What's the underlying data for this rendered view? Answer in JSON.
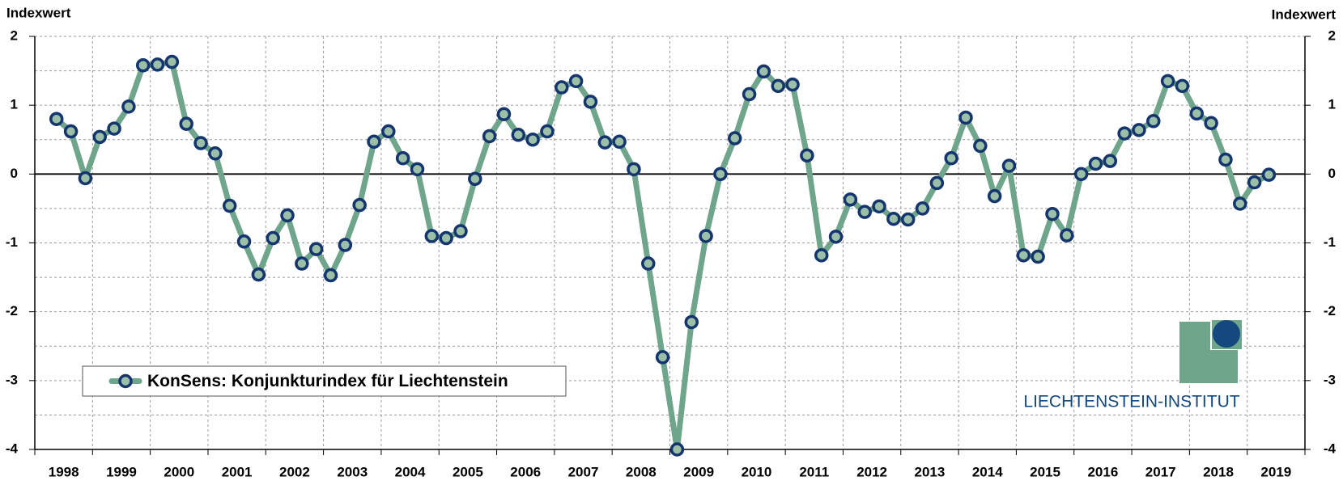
{
  "chart_data": {
    "type": "line",
    "y_label": "Indexwert",
    "y2_label": "Indexwert",
    "x": [
      1998.375,
      1998.625,
      1998.875,
      1999.125,
      1999.375,
      1999.625,
      1999.875,
      2000.125,
      2000.375,
      2000.625,
      2000.875,
      2001.125,
      2001.375,
      2001.625,
      2001.875,
      2002.125,
      2002.375,
      2002.625,
      2002.875,
      2003.125,
      2003.375,
      2003.625,
      2003.875,
      2004.125,
      2004.375,
      2004.625,
      2004.875,
      2005.125,
      2005.375,
      2005.625,
      2005.875,
      2006.125,
      2006.375,
      2006.625,
      2006.875,
      2007.125,
      2007.375,
      2007.625,
      2007.875,
      2008.125,
      2008.375,
      2008.625,
      2008.875,
      2009.125,
      2009.375,
      2009.625,
      2009.875,
      2010.125,
      2010.375,
      2010.625,
      2010.875,
      2011.125,
      2011.375,
      2011.625,
      2011.875,
      2012.125,
      2012.375,
      2012.625,
      2012.875,
      2013.125,
      2013.375,
      2013.625,
      2013.875,
      2014.125,
      2014.375,
      2014.625,
      2014.875,
      2015.125,
      2015.375,
      2015.625,
      2015.875,
      2016.125,
      2016.375,
      2016.625,
      2016.875,
      2017.125,
      2017.375,
      2017.625,
      2017.875,
      2018.125,
      2018.375,
      2018.625,
      2018.875,
      2019.125,
      2019.375
    ],
    "series": [
      {
        "name": "KonSens: Konjunkturindex für Liechtenstein",
        "color": "#6fa58a",
        "marker_color": "#9cbfa8",
        "marker_edge": "#14356e",
        "values": [
          0.8,
          0.62,
          -0.06,
          0.54,
          0.66,
          0.98,
          1.58,
          1.59,
          1.63,
          0.73,
          0.45,
          0.3,
          -0.46,
          -0.98,
          -1.46,
          -0.93,
          -0.6,
          -1.3,
          -1.09,
          -1.47,
          -1.03,
          -0.45,
          0.47,
          0.62,
          0.23,
          0.07,
          -0.9,
          -0.93,
          -0.83,
          -0.07,
          0.55,
          0.87,
          0.57,
          0.5,
          0.62,
          1.26,
          1.35,
          1.05,
          0.46,
          0.47,
          0.07,
          -1.3,
          -2.66,
          -4.0,
          -2.15,
          -0.9,
          0.0,
          0.52,
          1.16,
          1.49,
          1.28,
          1.3,
          0.27,
          -1.18,
          -0.91,
          -0.37,
          -0.55,
          -0.47,
          -0.65,
          -0.66,
          -0.5,
          -0.13,
          0.23,
          0.82,
          0.41,
          -0.32,
          0.12,
          -1.18,
          -1.2,
          -0.58,
          -0.89,
          0.0,
          0.15,
          0.19,
          0.59,
          0.64,
          0.77,
          1.35,
          1.28,
          0.88,
          0.74,
          0.21,
          -0.43,
          -0.12,
          -0.01
        ]
      }
    ],
    "xlim": [
      1998,
      2020
    ],
    "xticks": [
      {
        "value": 1998.5,
        "label": "1998"
      },
      {
        "value": 1999.5,
        "label": "1999"
      },
      {
        "value": 2000.5,
        "label": "2000"
      },
      {
        "value": 2001.5,
        "label": "2001"
      },
      {
        "value": 2002.5,
        "label": "2002"
      },
      {
        "value": 2003.5,
        "label": "2003"
      },
      {
        "value": 2004.5,
        "label": "2004"
      },
      {
        "value": 2005.5,
        "label": "2005"
      },
      {
        "value": 2006.5,
        "label": "2006"
      },
      {
        "value": 2007.5,
        "label": "2007"
      },
      {
        "value": 2008.5,
        "label": "2008"
      },
      {
        "value": 2009.5,
        "label": "2009"
      },
      {
        "value": 2010.5,
        "label": "2010"
      },
      {
        "value": 2011.5,
        "label": "2011"
      },
      {
        "value": 2012.5,
        "label": "2012"
      },
      {
        "value": 2013.5,
        "label": "2013"
      },
      {
        "value": 2014.5,
        "label": "2014"
      },
      {
        "value": 2015.5,
        "label": "2015"
      },
      {
        "value": 2016.5,
        "label": "2016"
      },
      {
        "value": 2017.5,
        "label": "2017"
      },
      {
        "value": 2018.5,
        "label": "2018"
      },
      {
        "value": 2019.5,
        "label": "2019"
      }
    ],
    "x_grid": [
      1998,
      1999,
      2000,
      2001,
      2002,
      2003,
      2004,
      2005,
      2006,
      2007,
      2008,
      2009,
      2010,
      2011,
      2012,
      2013,
      2014,
      2015,
      2016,
      2017,
      2018,
      2019,
      2020
    ],
    "ylim": [
      -4,
      2
    ],
    "yticks": [
      -4,
      -3,
      -2,
      -1,
      0,
      1,
      2
    ],
    "y2lim": [
      -4,
      2
    ],
    "y2ticks": [
      -4,
      -3,
      -2,
      -1,
      0,
      1,
      2
    ],
    "y_grid": [
      -4,
      -3.5,
      -3,
      -2.5,
      -2,
      -1.5,
      -1,
      -0.5,
      0.5,
      1,
      1.5,
      2
    ],
    "grid": true,
    "legend": "lower left",
    "logo": "LIECHTENSTEIN-INSTITUT"
  }
}
